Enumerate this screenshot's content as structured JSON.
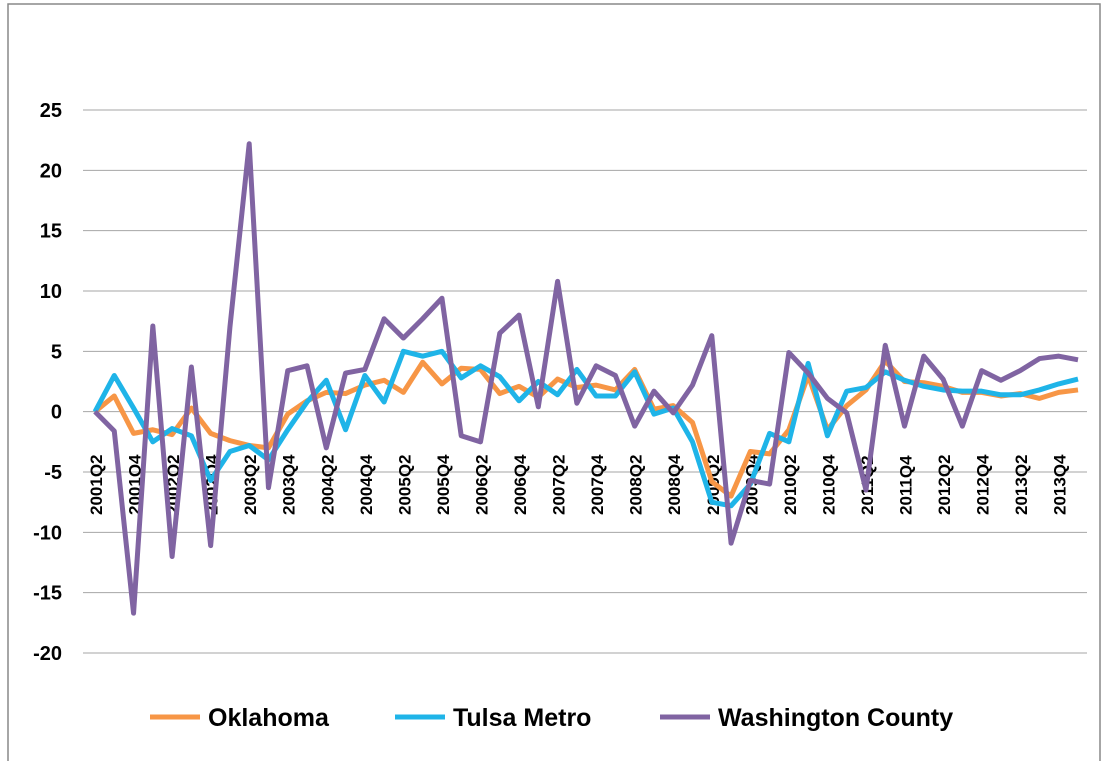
{
  "chart_data": {
    "type": "line",
    "categories": [
      "2001Q2",
      null,
      "2001Q4",
      null,
      "2002Q2",
      null,
      "2002Q4",
      null,
      "2003Q2",
      null,
      "2003Q4",
      null,
      "2004Q2",
      null,
      "2004Q4",
      null,
      "2005Q2",
      null,
      "2005Q4",
      null,
      "2006Q2",
      null,
      "2006Q4",
      null,
      "2007Q2",
      null,
      "2007Q4",
      null,
      "2008Q2",
      null,
      "2008Q4",
      null,
      "2009Q2",
      null,
      "2009Q4",
      null,
      "2010Q2",
      null,
      "2010Q4",
      null,
      "2011Q2",
      null,
      "2011Q4",
      null,
      "2012Q2",
      null,
      "2012Q4",
      null,
      "2013Q2",
      null,
      "2013Q4",
      null
    ],
    "series": [
      {
        "name": "Oklahoma",
        "color": "#f79646",
        "values": [
          0,
          1.3,
          -1.8,
          -1.5,
          -1.9,
          0.3,
          -1.8,
          -2.4,
          -2.8,
          -3.0,
          -0.2,
          0.9,
          1.6,
          1.5,
          2.2,
          2.6,
          1.6,
          4.1,
          2.3,
          3.6,
          3.5,
          1.5,
          2.1,
          1.2,
          2.7,
          2.0,
          2.2,
          1.8,
          3.5,
          0.2,
          0.5,
          -0.9,
          -5.8,
          -7.0,
          -3.3,
          -3.5,
          -1.5,
          3.0,
          -1.5,
          0.5,
          1.8,
          4.2,
          2.5,
          2.4,
          2.1,
          1.6,
          1.6,
          1.3,
          1.5,
          1.1,
          1.6,
          1.8
        ]
      },
      {
        "name": "Tulsa Metro",
        "color": "#1fb4e8",
        "values": [
          0,
          3.0,
          0.3,
          -2.5,
          -1.4,
          -2.0,
          -5.7,
          -3.3,
          -2.8,
          -4.0,
          -1.5,
          0.8,
          2.6,
          -1.5,
          3.0,
          0.8,
          5.0,
          4.6,
          5.0,
          2.8,
          3.8,
          2.9,
          0.9,
          2.5,
          1.4,
          3.5,
          1.3,
          1.3,
          3.3,
          -0.2,
          0.3,
          -2.5,
          -7.5,
          -7.8,
          -6.0,
          -1.8,
          -2.5,
          4.0,
          -2.0,
          1.7,
          2.0,
          3.3,
          2.6,
          2.1,
          1.8,
          1.7,
          1.7,
          1.4,
          1.4,
          1.8,
          2.3,
          2.7
        ]
      },
      {
        "name": "Washington County",
        "color": "#8064a2",
        "values": [
          0,
          -1.6,
          -16.7,
          7.1,
          -12.0,
          3.7,
          -11.1,
          7.0,
          22.2,
          -6.3,
          3.4,
          3.8,
          -3.0,
          3.2,
          3.5,
          7.7,
          6.1,
          7.7,
          9.4,
          -2.0,
          -2.5,
          6.5,
          8.0,
          0.4,
          10.8,
          0.7,
          3.8,
          3.0,
          -1.2,
          1.7,
          -0.1,
          2.2,
          6.3,
          -10.9,
          -5.7,
          -6.0,
          4.9,
          3.2,
          1.1,
          -0.1,
          -6.5,
          5.5,
          -1.2,
          4.6,
          2.7,
          -1.2,
          3.4,
          2.6,
          3.4,
          4.4,
          4.6,
          4.3
        ]
      }
    ],
    "ylim": [
      -20,
      25
    ],
    "yticks": [
      -20,
      -15,
      -10,
      -5,
      0,
      5,
      10,
      15,
      20,
      25
    ],
    "grid": true,
    "legend": "bottom"
  }
}
